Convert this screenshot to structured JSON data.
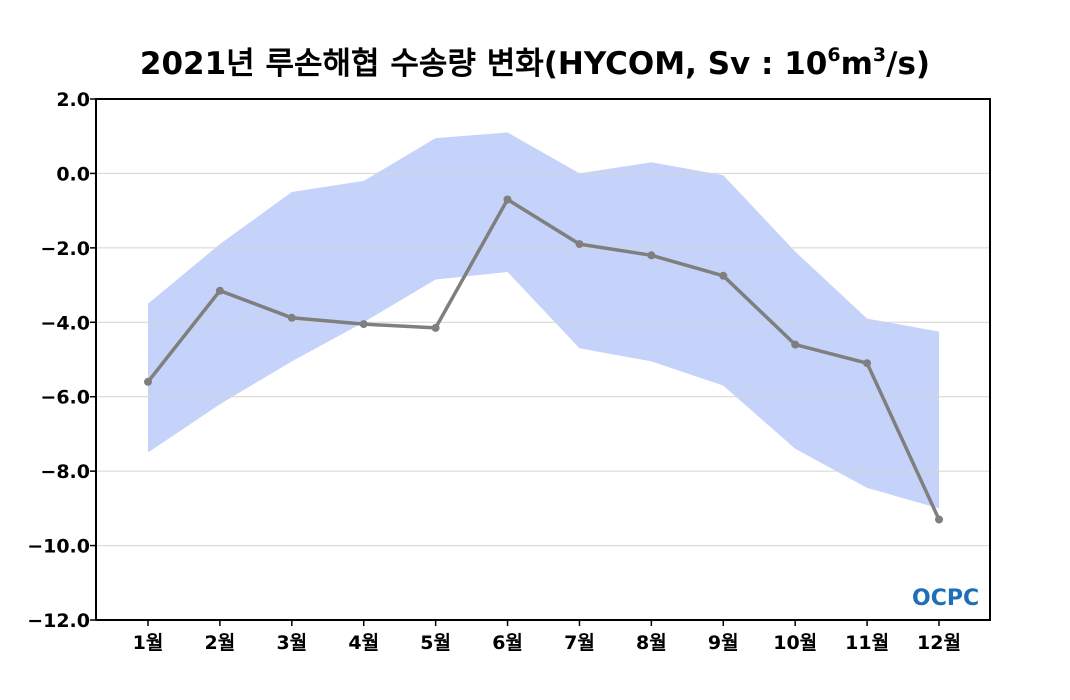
{
  "chart_data": {
    "type": "line",
    "title": {
      "main": "2021년 루손해협 수송량 변화(HYCOM, Sv : 10",
      "exp1": "6",
      "mid": "m",
      "exp2": "3",
      "tail": "/s)"
    },
    "xlabel": "",
    "ylabel": "",
    "categories": [
      "1월",
      "2월",
      "3월",
      "4월",
      "5월",
      "6월",
      "7월",
      "8월",
      "9월",
      "10월",
      "11월",
      "12월"
    ],
    "ylim": [
      -12.0,
      2.0
    ],
    "yticks": [
      2.0,
      0.0,
      -2.0,
      -4.0,
      -6.0,
      -8.0,
      -10.0,
      -12.0
    ],
    "ytick_labels": [
      "2.0",
      "0.0",
      "−2.0",
      "−4.0",
      "−6.0",
      "−8.0",
      "−10.0",
      "−12.0"
    ],
    "grid": true,
    "series": [
      {
        "values": [
          -5.6,
          -3.15,
          -3.88,
          -4.05,
          -4.15,
          -0.7,
          -1.9,
          -2.2,
          -2.75,
          -4.6,
          -5.1,
          -9.3
        ],
        "color": "#7f7f7f"
      }
    ],
    "band": {
      "upper": [
        -3.5,
        -1.9,
        -0.5,
        -0.2,
        0.95,
        1.1,
        0.0,
        0.3,
        -0.05,
        -2.1,
        -3.9,
        -4.25
      ],
      "lower": [
        -7.5,
        -6.2,
        -5.05,
        -4.0,
        -2.85,
        -2.65,
        -4.7,
        -5.05,
        -5.7,
        -7.4,
        -8.45,
        -9.0
      ],
      "color": "#c5d3fb"
    },
    "logo": {
      "text": "OCPC",
      "color": "#1f6fb8"
    }
  }
}
